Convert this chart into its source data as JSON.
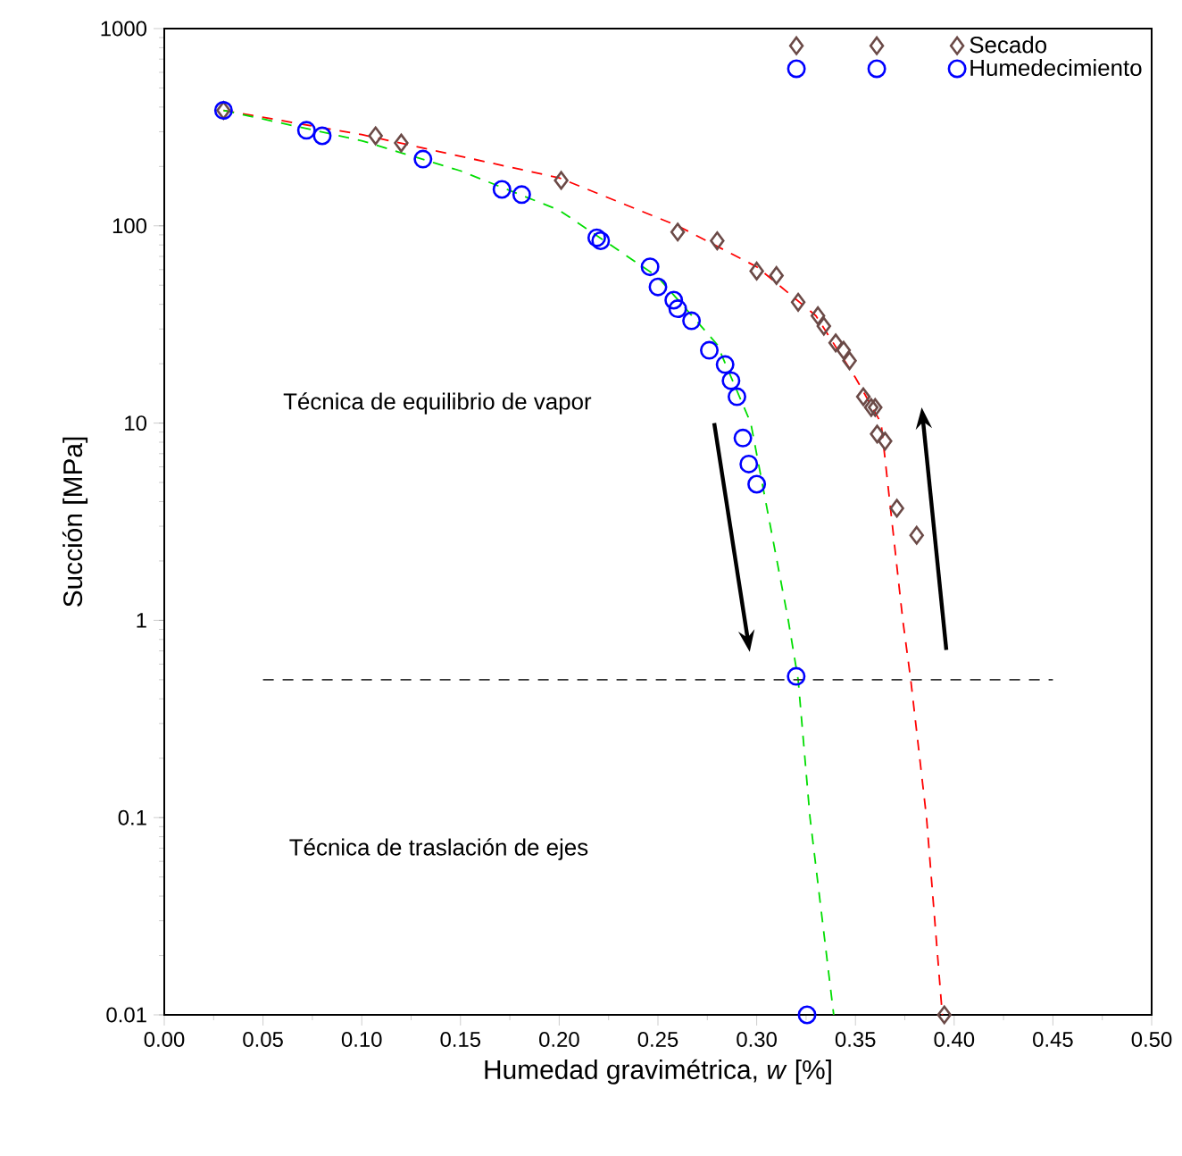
{
  "chart_data": {
    "type": "scatter",
    "xlabel": "Humedad gravimétrica, *w* [%]",
    "ylabel": "Succión [MPa]",
    "log": "y",
    "xlim": [
      0,
      0.5
    ],
    "ylim": [
      0.01,
      1000
    ],
    "xticks": [
      {
        "value": 0,
        "label": "0.00"
      },
      {
        "value": 0.05,
        "label": "0.05"
      },
      {
        "value": 0.1,
        "label": "0.10"
      },
      {
        "value": 0.15,
        "label": "0.15"
      },
      {
        "value": 0.2,
        "label": "0.20"
      },
      {
        "value": 0.25,
        "label": "0.25"
      },
      {
        "value": 0.3,
        "label": "0.30"
      },
      {
        "value": 0.35,
        "label": "0.35"
      },
      {
        "value": 0.4,
        "label": "0.40"
      },
      {
        "value": 0.45,
        "label": "0.45"
      },
      {
        "value": 0.5,
        "label": "0.50"
      }
    ],
    "yticks": [
      0.01,
      0.1,
      1,
      10,
      100,
      1000
    ],
    "grid": false,
    "legend": "top right",
    "annotations": [
      "Técnica de equilibrio de vapor",
      "Técnica de traslación de ejes"
    ],
    "series": [
      {
        "name": "Secado",
        "marker": "diamond",
        "color": "#6b4a47",
        "x": [
          0.03,
          0.107,
          0.12,
          0.201,
          0.26,
          0.28,
          0.3,
          0.31,
          0.321,
          0.331,
          0.334,
          0.34,
          0.344,
          0.347,
          0.354,
          0.358,
          0.36,
          0.361,
          0.365,
          0.371,
          0.381,
          0.395
        ],
        "values": [
          385,
          286,
          263,
          170,
          93,
          84,
          59,
          56,
          41,
          35,
          31,
          25.5,
          23.4,
          20.7,
          13.6,
          12,
          12,
          8.8,
          8.1,
          3.7,
          2.7,
          0.01
        ]
      },
      {
        "name": "Humedecimiento",
        "marker": "circle",
        "color": "#0000ff",
        "x": [
          0.03,
          0.072,
          0.08,
          0.131,
          0.171,
          0.181,
          0.219,
          0.221,
          0.246,
          0.25,
          0.258,
          0.26,
          0.267,
          0.276,
          0.284,
          0.287,
          0.29,
          0.293,
          0.296,
          0.3,
          0.32,
          0.3255
        ],
        "values": [
          385,
          305,
          286,
          218,
          153,
          144,
          87,
          84,
          62,
          49,
          42,
          38,
          33,
          23.4,
          19.8,
          16.4,
          13.6,
          8.4,
          6.2,
          4.9,
          0.52,
          0.01
        ]
      },
      {
        "type": "line",
        "marker": "none",
        "line_style": "dashed",
        "color": "#ff0000",
        "x": [
          0.03,
          0.1,
          0.2,
          0.26,
          0.3,
          0.33,
          0.35,
          0.363,
          0.374,
          0.378,
          0.386,
          0.394
        ],
        "values": [
          385,
          290,
          175,
          100,
          62,
          35,
          17,
          10,
          1,
          0.5,
          0.1,
          0.01
        ]
      },
      {
        "type": "line",
        "marker": "none",
        "line_style": "dashed",
        "color": "#00dd00",
        "x": [
          0.03,
          0.1,
          0.15,
          0.2,
          0.25,
          0.28,
          0.297,
          0.316,
          0.321,
          0.327,
          0.339
        ],
        "values": [
          385,
          270,
          190,
          120,
          55,
          25,
          10,
          1,
          0.5,
          0.1,
          0.01
        ]
      },
      {
        "type": "line",
        "marker": "none",
        "line_style": "dashed",
        "color": "#333333",
        "x": [
          0.05,
          0.45
        ],
        "values": [
          0.5,
          0.5
        ]
      }
    ]
  }
}
